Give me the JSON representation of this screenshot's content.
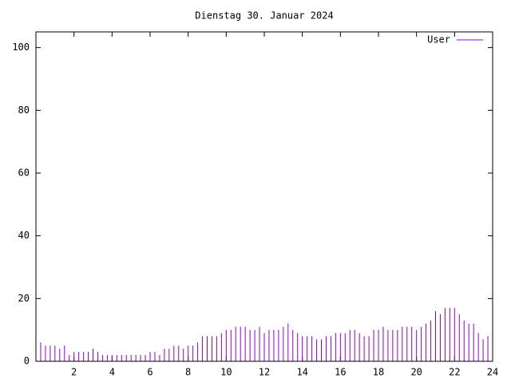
{
  "chart_data": {
    "type": "impulse",
    "title": "Dienstag 30. Januar 2024",
    "series": [
      {
        "name": "User",
        "color": "#9400d3",
        "x": [
          0,
          0.25,
          0.5,
          0.75,
          1,
          1.25,
          1.5,
          1.75,
          2,
          2.25,
          2.5,
          2.75,
          3,
          3.25,
          3.5,
          3.75,
          4,
          4.25,
          4.5,
          4.75,
          5,
          5.25,
          5.5,
          5.75,
          6,
          6.25,
          6.5,
          6.75,
          7,
          7.25,
          7.5,
          7.75,
          8,
          8.25,
          8.5,
          8.75,
          9,
          9.25,
          9.5,
          9.75,
          10,
          10.25,
          10.5,
          10.75,
          11,
          11.25,
          11.5,
          11.75,
          12,
          12.25,
          12.5,
          12.75,
          13,
          13.25,
          13.5,
          13.75,
          14,
          14.25,
          14.5,
          14.75,
          15,
          15.25,
          15.5,
          15.75,
          16,
          16.25,
          16.5,
          16.75,
          17,
          17.25,
          17.5,
          17.75,
          18,
          18.25,
          18.5,
          18.75,
          19,
          19.25,
          19.5,
          19.75,
          20,
          20.25,
          20.5,
          20.75,
          21,
          21.25,
          21.5,
          21.75,
          22,
          22.25,
          22.5,
          22.75,
          23,
          23.25,
          23.5,
          23.75
        ],
        "values": [
          4,
          6,
          5,
          5,
          5,
          4,
          5,
          2,
          3,
          3,
          3,
          3,
          4,
          3,
          2,
          2,
          2,
          2,
          2,
          2,
          2,
          2,
          2,
          2,
          3,
          3,
          2,
          4,
          4,
          5,
          5,
          4,
          5,
          5,
          6,
          8,
          8,
          8,
          8,
          9,
          10,
          10,
          11,
          11,
          11,
          10,
          10,
          11,
          9,
          10,
          10,
          10,
          11,
          12,
          10,
          9,
          8,
          8,
          8,
          7,
          7,
          8,
          8,
          9,
          9,
          9,
          10,
          10,
          9,
          8,
          8,
          10,
          10,
          11,
          10,
          10,
          10,
          11,
          11,
          11,
          10,
          11,
          12,
          13,
          16,
          15,
          17,
          17,
          17,
          15,
          13,
          12,
          12,
          9,
          7,
          8
        ]
      }
    ],
    "xlim": [
      0,
      24
    ],
    "xticks": [
      2,
      4,
      6,
      8,
      10,
      12,
      14,
      16,
      18,
      20,
      22,
      24
    ],
    "ylim": [
      0,
      105
    ],
    "yticks": [
      0,
      20,
      40,
      60,
      80,
      100
    ]
  }
}
